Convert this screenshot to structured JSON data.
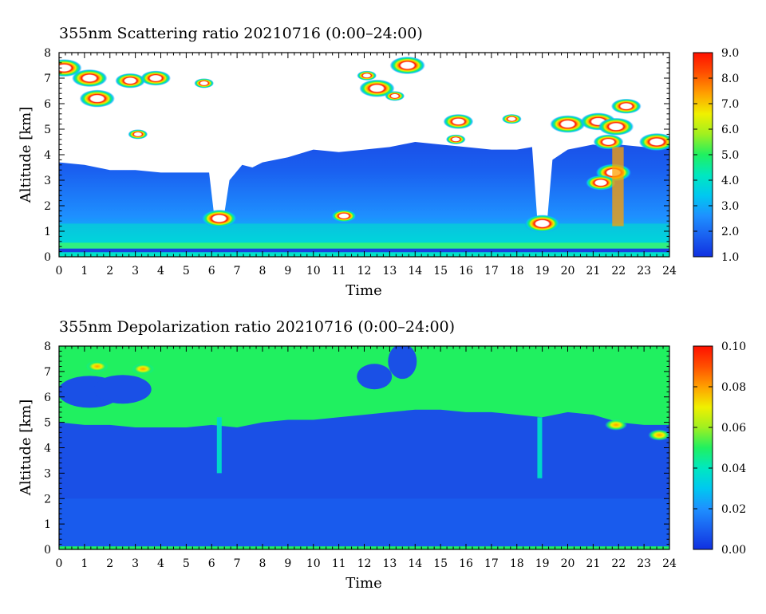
{
  "chart_data": [
    {
      "type": "heatmap",
      "title": "355nm Scattering ratio  20210716 (0:00–24:00)",
      "xlabel": "Time",
      "ylabel": "Altitude [km]",
      "xlim": [
        0,
        24
      ],
      "ylim": [
        0,
        8
      ],
      "x_ticks": [
        "0",
        "1",
        "2",
        "3",
        "4",
        "5",
        "6",
        "7",
        "8",
        "9",
        "10",
        "11",
        "12",
        "13",
        "14",
        "15",
        "16",
        "17",
        "18",
        "19",
        "20",
        "21",
        "22",
        "23",
        "24"
      ],
      "y_ticks": [
        "0",
        "1",
        "2",
        "3",
        "4",
        "5",
        "6",
        "7",
        "8"
      ],
      "colorbar": {
        "range": [
          1.0,
          9.0
        ],
        "ticks": [
          "1.0",
          "2.0",
          "3.0",
          "4.0",
          "5.0",
          "6.0",
          "7.0",
          "8.0",
          "9.0"
        ],
        "colors": [
          "#1030e0",
          "#1a60f0",
          "#1e90ff",
          "#00c8f0",
          "#00e8c0",
          "#20f060",
          "#a0f020",
          "#f0f000",
          "#ffa000",
          "#ff5000",
          "#ff1000"
        ]
      },
      "layers": {
        "boundary_layer_top_km": [
          [
            0,
            3.7
          ],
          [
            1,
            3.6
          ],
          [
            2,
            3.4
          ],
          [
            3,
            3.4
          ],
          [
            4,
            3.3
          ],
          [
            5,
            3.3
          ],
          [
            5.9,
            3.3
          ],
          [
            6.1,
            1.6
          ],
          [
            6.5,
            1.7
          ],
          [
            6.7,
            3.0
          ],
          [
            7.2,
            3.6
          ],
          [
            7.6,
            3.5
          ],
          [
            8,
            3.7
          ],
          [
            9,
            3.9
          ],
          [
            10,
            4.2
          ],
          [
            11,
            4.1
          ],
          [
            12,
            4.2
          ],
          [
            13,
            4.3
          ],
          [
            14,
            4.5
          ],
          [
            15,
            4.4
          ],
          [
            16,
            4.3
          ],
          [
            17,
            4.2
          ],
          [
            18,
            4.2
          ],
          [
            18.6,
            4.3
          ],
          [
            18.8,
            1.5
          ],
          [
            19.2,
            1.5
          ],
          [
            19.4,
            3.8
          ],
          [
            20,
            4.2
          ],
          [
            21,
            4.4
          ],
          [
            21.6,
            4.3
          ],
          [
            22,
            4.4
          ],
          [
            23,
            4.3
          ],
          [
            24,
            4.3
          ]
        ],
        "cloud_patches": [
          {
            "t": 0.2,
            "alt": 7.4,
            "peak": 9.0
          },
          {
            "t": 1.2,
            "alt": 7.0,
            "peak": 9.0
          },
          {
            "t": 1.5,
            "alt": 6.2,
            "peak": 9.0
          },
          {
            "t": 2.8,
            "alt": 6.9,
            "peak": 8.0
          },
          {
            "t": 3.8,
            "alt": 7.0,
            "peak": 8.0
          },
          {
            "t": 3.1,
            "alt": 4.8,
            "peak": 6.0
          },
          {
            "t": 5.7,
            "alt": 6.8,
            "peak": 6.0
          },
          {
            "t": 6.3,
            "alt": 1.5,
            "peak": 9.0
          },
          {
            "t": 11.2,
            "alt": 1.6,
            "peak": 7.0
          },
          {
            "t": 12.1,
            "alt": 7.1,
            "peak": 6.0
          },
          {
            "t": 12.5,
            "alt": 6.6,
            "peak": 9.0
          },
          {
            "t": 13.2,
            "alt": 6.3,
            "peak": 6.0
          },
          {
            "t": 13.7,
            "alt": 7.5,
            "peak": 9.0
          },
          {
            "t": 15.7,
            "alt": 5.3,
            "peak": 8.0
          },
          {
            "t": 15.6,
            "alt": 4.6,
            "peak": 6.0
          },
          {
            "t": 17.8,
            "alt": 5.4,
            "peak": 6.0
          },
          {
            "t": 19.0,
            "alt": 1.3,
            "peak": 9.0
          },
          {
            "t": 20.0,
            "alt": 5.2,
            "peak": 9.0
          },
          {
            "t": 21.2,
            "alt": 5.3,
            "peak": 9.0
          },
          {
            "t": 21.9,
            "alt": 5.1,
            "peak": 9.0
          },
          {
            "t": 22.3,
            "alt": 5.9,
            "peak": 8.0
          },
          {
            "t": 21.6,
            "alt": 4.5,
            "peak": 8.0
          },
          {
            "t": 23.5,
            "alt": 4.5,
            "peak": 9.0
          },
          {
            "t": 21.8,
            "alt": 3.3,
            "peak": 9.0
          },
          {
            "t": 21.3,
            "alt": 2.9,
            "peak": 8.0
          }
        ]
      }
    },
    {
      "type": "heatmap",
      "title": "355nm Depolarization ratio  20210716 (0:00–24:00)",
      "xlabel": "Time",
      "ylabel": "Altitude [km]",
      "xlim": [
        0,
        24
      ],
      "ylim": [
        0,
        8
      ],
      "x_ticks": [
        "0",
        "1",
        "2",
        "3",
        "4",
        "5",
        "6",
        "7",
        "8",
        "9",
        "10",
        "11",
        "12",
        "13",
        "14",
        "15",
        "16",
        "17",
        "18",
        "19",
        "20",
        "21",
        "22",
        "23",
        "24"
      ],
      "y_ticks": [
        "0",
        "1",
        "2",
        "3",
        "4",
        "5",
        "6",
        "7",
        "8"
      ],
      "colorbar": {
        "range": [
          0.0,
          0.1
        ],
        "ticks": [
          "0.00",
          "0.02",
          "0.04",
          "0.06",
          "0.08",
          "0.10"
        ],
        "colors": [
          "#1030e0",
          "#1a60f0",
          "#1e90ff",
          "#00c8f0",
          "#00e8c0",
          "#20f060",
          "#a0f020",
          "#f0f000",
          "#ffa000",
          "#ff5000",
          "#ff1000"
        ]
      },
      "layers": {
        "low_depol_top_km": [
          [
            0,
            5.0
          ],
          [
            1,
            4.9
          ],
          [
            2,
            4.9
          ],
          [
            3,
            4.8
          ],
          [
            4,
            4.8
          ],
          [
            5,
            4.8
          ],
          [
            6,
            4.9
          ],
          [
            7,
            4.8
          ],
          [
            8,
            5.0
          ],
          [
            9,
            5.1
          ],
          [
            10,
            5.1
          ],
          [
            11,
            5.2
          ],
          [
            12,
            5.3
          ],
          [
            13,
            5.4
          ],
          [
            14,
            5.5
          ],
          [
            15,
            5.5
          ],
          [
            16,
            5.4
          ],
          [
            17,
            5.4
          ],
          [
            18,
            5.3
          ],
          [
            19,
            5.2
          ],
          [
            20,
            5.4
          ],
          [
            21,
            5.3
          ],
          [
            22,
            5.0
          ],
          [
            23,
            4.9
          ],
          [
            24,
            4.9
          ]
        ],
        "background_depol": 0.035,
        "lower_layer_depol": 0.005
      }
    }
  ]
}
